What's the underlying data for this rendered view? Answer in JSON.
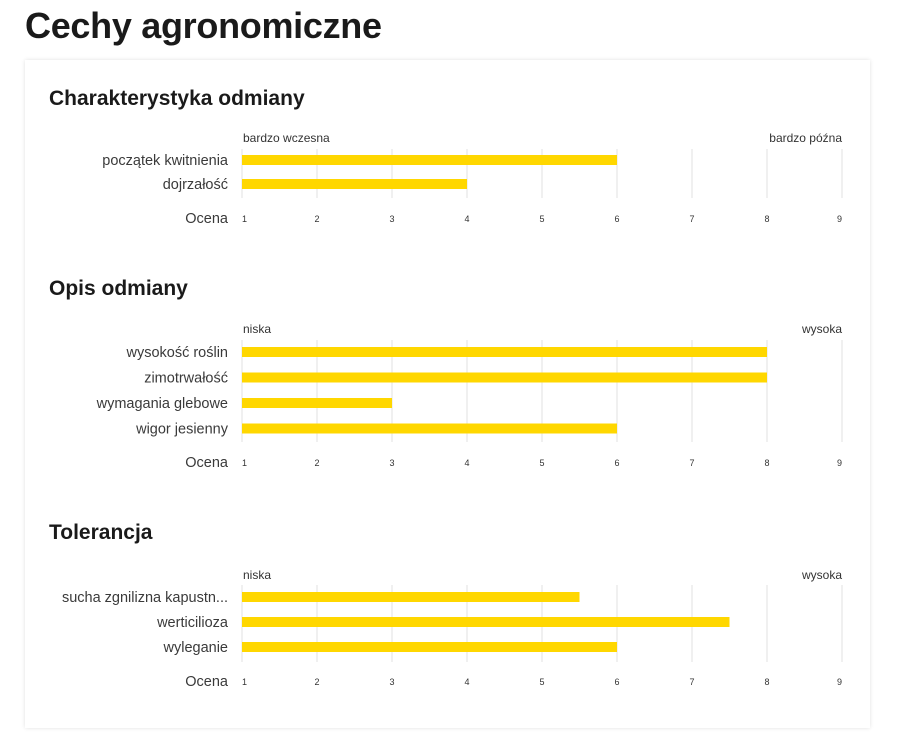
{
  "page_title": "Cechy agronomiczne",
  "colors": {
    "bar": "#ffd700",
    "grid": "#e2e2e2",
    "text": "#1a1a1a"
  },
  "chart_data": [
    {
      "type": "bar",
      "orientation": "horizontal",
      "title": "Charakterystyka odmiany",
      "scale_min_label": "bardzo wczesna",
      "scale_max_label": "bardzo późna",
      "xlabel": "Ocena",
      "xlim": [
        1,
        9
      ],
      "ticks": [
        1,
        2,
        3,
        4,
        5,
        6,
        7,
        8,
        9
      ],
      "categories": [
        "początek kwitnienia",
        "dojrzałość"
      ],
      "values": [
        6,
        4
      ]
    },
    {
      "type": "bar",
      "orientation": "horizontal",
      "title": "Opis odmiany",
      "scale_min_label": "niska",
      "scale_max_label": "wysoka",
      "xlabel": "Ocena",
      "xlim": [
        1,
        9
      ],
      "ticks": [
        1,
        2,
        3,
        4,
        5,
        6,
        7,
        8,
        9
      ],
      "categories": [
        "wysokość roślin",
        "zimotrwałość",
        "wymagania glebowe",
        "wigor jesienny"
      ],
      "values": [
        8,
        8,
        3,
        6
      ]
    },
    {
      "type": "bar",
      "orientation": "horizontal",
      "title": "Tolerancja",
      "scale_min_label": "niska",
      "scale_max_label": "wysoka",
      "xlabel": "Ocena",
      "xlim": [
        1,
        9
      ],
      "ticks": [
        1,
        2,
        3,
        4,
        5,
        6,
        7,
        8,
        9
      ],
      "categories": [
        "sucha zgnilizna kapustn...",
        "werticilioza",
        "wyleganie"
      ],
      "values": [
        5.5,
        7.5,
        6
      ]
    }
  ]
}
